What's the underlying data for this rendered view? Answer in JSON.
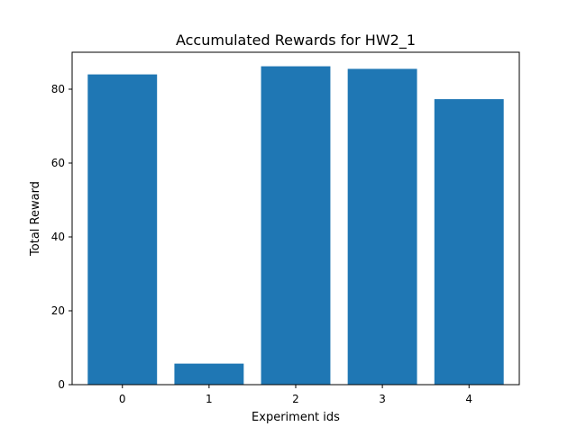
{
  "chart_data": {
    "type": "bar",
    "title": "Accumulated Rewards for HW2_1",
    "xlabel": "Experiment ids",
    "ylabel": "Total Reward",
    "categories": [
      "0",
      "1",
      "2",
      "3",
      "4"
    ],
    "values": [
      84.0,
      5.7,
      86.2,
      85.5,
      77.3
    ],
    "ylim": [
      0,
      90
    ],
    "yticks": [
      "0",
      "20",
      "40",
      "60",
      "80"
    ],
    "grid": false,
    "bar_color": "#1f77b4"
  }
}
